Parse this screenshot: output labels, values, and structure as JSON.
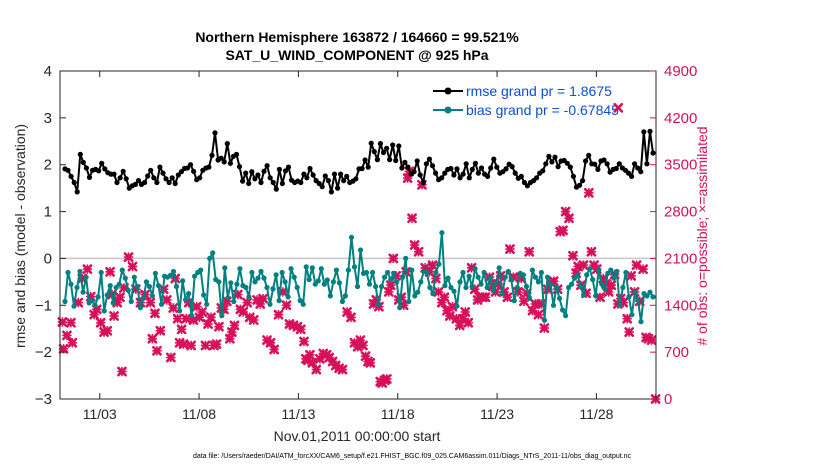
{
  "chart_data": {
    "type": "line",
    "title": "Northern Hemisphere 163872 / 164660 = 99.521%",
    "subtitle": "SAT_U_WIND_COMPONENT @ 925 hPa",
    "xlabel": "Nov.01,2011 00:00:00 start",
    "ylabel": "rmse and bias (model - observation)",
    "ylabel_right": "# of obs: o=possible; ×=assimilated",
    "footnote": "data file: /Users/raeder/DAI/ATM_forcXX/CAM6_setup/f.e21.FHIST_BGC.f09_025.CAM6assim.011/Diags_NTrS_2011-11/obs_diag_output.nc",
    "xlim": [
      0.5,
      30.5
    ],
    "ylim": [
      -3,
      4
    ],
    "ylim_right": [
      0,
      4900
    ],
    "x_ticks": [
      2.5,
      7.5,
      12.5,
      17.5,
      22.5,
      27.5
    ],
    "x_tick_labels": [
      "11/03",
      "11/08",
      "11/13",
      "11/18",
      "11/23",
      "11/28"
    ],
    "y_ticks": [
      -3,
      -2,
      -1,
      0,
      1,
      2,
      3,
      4
    ],
    "y_tick_labels": [
      "−3",
      "−2",
      "−1",
      "0",
      "1",
      "2",
      "3",
      "4"
    ],
    "y_ticks_right": [
      0,
      700,
      1400,
      2100,
      2800,
      3500,
      4200,
      4900
    ],
    "y_tick_labels_right": [
      "0",
      "700",
      "1400",
      "2100",
      "2800",
      "3500",
      "4200",
      "4900"
    ],
    "zero_line": 0,
    "legend_position": "top-right",
    "series": [
      {
        "name": "rmse grand pr = 1.8675",
        "color": "#000000",
        "marker": "circle",
        "values": [
          1.91,
          1.88,
          1.75,
          1.62,
          1.42,
          2.22,
          2.05,
          1.93,
          1.73,
          1.88,
          1.9,
          1.87,
          2.03,
          1.91,
          1.83,
          1.8,
          1.8,
          1.62,
          1.72,
          1.86,
          1.7,
          1.5,
          1.55,
          1.58,
          1.66,
          1.58,
          1.62,
          1.76,
          1.88,
          1.72,
          1.62,
          1.95,
          1.82,
          1.7,
          1.62,
          1.72,
          1.6,
          1.78,
          1.85,
          1.92,
          1.93,
          2.0,
          1.86,
          1.68,
          1.72,
          1.88,
          1.93,
          1.95,
          2.2,
          2.68,
          2.1,
          2.14,
          2.06,
          2.45,
          2.03,
          2.18,
          2.22,
          1.96,
          1.65,
          1.82,
          1.6,
          1.85,
          1.7,
          1.78,
          1.62,
          1.86,
          1.98,
          1.72,
          1.62,
          1.48,
          1.9,
          1.6,
          1.87,
          1.95,
          1.67,
          1.62,
          1.65,
          1.62,
          1.8,
          1.72,
          1.92,
          1.78,
          1.66,
          1.6,
          1.53,
          1.76,
          1.66,
          1.42,
          1.8,
          1.5,
          1.8,
          1.66,
          1.75,
          1.62,
          1.65,
          1.7,
          1.91,
          1.92,
          2.1,
          1.95,
          2.46,
          2.28,
          2.11,
          2.45,
          2.26,
          2.35,
          2.11,
          2.42,
          2.09,
          2.4,
          1.93,
          2.05,
          1.95,
          1.8,
          1.85,
          2.08,
          1.78,
          1.62,
          2.02,
          2.12,
          1.98,
          1.82,
          1.68,
          1.72,
          1.82,
          1.9,
          1.92,
          1.78,
          1.91,
          1.72,
          1.8,
          2.02,
          1.72,
          1.9,
          2.03,
          1.82,
          1.93,
          1.8,
          1.75,
          1.93,
          2.12,
          1.95,
          1.82,
          1.85,
          1.91,
          2.01,
          1.96,
          1.82,
          1.71,
          1.75,
          1.62,
          1.55,
          1.62,
          1.66,
          1.72,
          1.82,
          1.87,
          2.02,
          2.18,
          2.06,
          2.16,
          1.96,
          2.08,
          2.09,
          2.03,
          1.95,
          1.75,
          1.52,
          1.56,
          1.66,
          2.08,
          2.2,
          2.02,
          2.01,
          1.9,
          2.08,
          2.1,
          2.02,
          1.84,
          1.9,
          1.92,
          2.02,
          1.93,
          1.88,
          1.82,
          1.75,
          2.02,
          1.93,
          1.85,
          2.7,
          2.02,
          2.71,
          2.25
        ]
      },
      {
        "name": "bias grand pr = -0.67845",
        "color": "#008080",
        "marker": "circle",
        "values": [
          -0.92,
          -0.3,
          -0.55,
          -1.02,
          -0.62,
          -0.28,
          -0.72,
          -0.4,
          -0.95,
          -0.9,
          -1.0,
          -0.82,
          -0.3,
          -1.12,
          -0.78,
          -0.58,
          -0.95,
          -0.62,
          -0.55,
          -0.25,
          -0.42,
          -0.68,
          -0.92,
          -0.4,
          -0.6,
          -1.05,
          -0.85,
          -0.5,
          -0.6,
          -0.8,
          -0.32,
          -0.58,
          -0.98,
          -0.38,
          -0.4,
          -0.36,
          -0.28,
          -0.6,
          -1.12,
          -0.48,
          -0.88,
          -0.75,
          -1.22,
          -0.38,
          -0.3,
          -0.25,
          -0.78,
          -0.98,
          0.0,
          0.12,
          -0.45,
          -0.5,
          -1.22,
          -0.2,
          -0.84,
          -0.52,
          -0.92,
          -0.55,
          -0.22,
          -0.58,
          -0.62,
          -0.82,
          -0.3,
          -0.5,
          -0.42,
          -0.28,
          -0.42,
          -0.62,
          -0.98,
          -0.65,
          -0.35,
          -0.9,
          -0.3,
          -0.5,
          -0.82,
          -0.22,
          -0.4,
          -0.62,
          -0.9,
          -0.98,
          -0.18,
          -0.45,
          -0.2,
          -0.55,
          -0.48,
          -0.22,
          -0.55,
          -0.46,
          -0.8,
          -0.5,
          -0.25,
          -0.52,
          -0.92,
          -0.8,
          -0.25,
          0.45,
          -0.18,
          -0.6,
          0.18,
          -0.32,
          -0.3,
          -0.55,
          -0.3,
          -0.6,
          -0.98,
          -0.6,
          -0.4,
          -0.3,
          -0.45,
          -0.32,
          -0.5,
          -1.05,
          -0.4,
          0.0,
          -0.92,
          -0.25,
          -0.8,
          -0.72,
          -0.5,
          -0.28,
          -0.3,
          -0.62,
          -0.75,
          -0.3,
          -0.12,
          0.55,
          -0.58,
          -0.42,
          -0.62,
          -0.7,
          -1.02,
          -0.5,
          -0.3,
          -0.62,
          -0.38,
          -0.6,
          -0.22,
          -0.4,
          -0.55,
          -0.3,
          -0.62,
          -0.42,
          -0.68,
          -0.52,
          -0.2,
          -0.75,
          -0.4,
          -0.28,
          -0.45,
          -0.9,
          -0.62,
          -0.32,
          -0.35,
          -0.6,
          -0.85,
          -0.25,
          -0.4,
          -0.5,
          -0.3,
          -1.32,
          -0.4,
          -0.55,
          -1.0,
          -0.62,
          -0.85,
          -1.1,
          -1.22,
          -0.62,
          -0.55,
          -0.42,
          -0.35,
          -0.6,
          -0.78,
          -0.35,
          -0.22,
          -0.45,
          -0.8,
          -0.25,
          -0.55,
          -0.65,
          -0.32,
          -0.25,
          -0.42,
          -0.28,
          -1.0,
          -0.62,
          -0.3,
          -0.82,
          -1.2,
          -0.72,
          -0.88,
          -1.35,
          -0.75,
          -0.8,
          -0.72,
          -0.82
        ]
      }
    ],
    "assimilated_obs": {
      "name": "assimilated",
      "color": "#d6105a",
      "marker": "x",
      "points": [
        [
          0.62,
          1150
        ],
        [
          0.68,
          750
        ],
        [
          0.85,
          950
        ],
        [
          1.05,
          1140
        ],
        [
          1.12,
          840
        ],
        [
          1.42,
          1440
        ],
        [
          1.62,
          1800
        ],
        [
          1.88,
          1940
        ],
        [
          2.05,
          1530
        ],
        [
          2.22,
          1260
        ],
        [
          2.35,
          1340
        ],
        [
          2.55,
          1140
        ],
        [
          2.72,
          1000
        ],
        [
          2.88,
          1020
        ],
        [
          3.02,
          1900
        ],
        [
          3.12,
          1560
        ],
        [
          3.22,
          1240
        ],
        [
          3.38,
          1440
        ],
        [
          3.52,
          1520
        ],
        [
          3.62,
          410
        ],
        [
          3.72,
          1660
        ],
        [
          3.95,
          2120
        ],
        [
          4.15,
          1980
        ],
        [
          4.32,
          1640
        ],
        [
          4.55,
          1440
        ],
        [
          4.78,
          1560
        ],
        [
          5.05,
          1440
        ],
        [
          5.15,
          900
        ],
        [
          5.28,
          1280
        ],
        [
          5.38,
          720
        ],
        [
          5.55,
          1020
        ],
        [
          5.72,
          1640
        ],
        [
          5.88,
          1480
        ],
        [
          6.08,
          620
        ],
        [
          6.2,
          1360
        ],
        [
          6.3,
          1800
        ],
        [
          6.42,
          1200
        ],
        [
          6.52,
          840
        ],
        [
          6.62,
          1040
        ],
        [
          6.72,
          820
        ],
        [
          6.85,
          1200
        ],
        [
          6.98,
          1440
        ],
        [
          7.1,
          800
        ],
        [
          7.22,
          1180
        ],
        [
          7.38,
          1380
        ],
        [
          7.52,
          1220
        ],
        [
          7.65,
          1300
        ],
        [
          7.82,
          800
        ],
        [
          7.95,
          1120
        ],
        [
          8.1,
          1220
        ],
        [
          8.25,
          800
        ],
        [
          8.38,
          820
        ],
        [
          8.5,
          1080
        ],
        [
          8.62,
          1360
        ],
        [
          8.75,
          1340
        ],
        [
          8.9,
          1460
        ],
        [
          9.05,
          900
        ],
        [
          9.15,
          1000
        ],
        [
          9.28,
          1100
        ],
        [
          9.45,
          1560
        ],
        [
          9.58,
          1340
        ],
        [
          9.72,
          1300
        ],
        [
          9.92,
          1440
        ],
        [
          10.05,
          1220
        ],
        [
          10.25,
          1180
        ],
        [
          10.42,
          1480
        ],
        [
          10.58,
          1420
        ],
        [
          10.72,
          1500
        ],
        [
          10.92,
          880
        ],
        [
          11.1,
          840
        ],
        [
          11.28,
          740
        ],
        [
          11.5,
          1260
        ],
        [
          11.72,
          1600
        ],
        [
          11.9,
          1400
        ],
        [
          12.05,
          1120
        ],
        [
          12.25,
          1100
        ],
        [
          12.45,
          1080
        ],
        [
          12.62,
          1040
        ],
        [
          12.78,
          860
        ],
        [
          12.88,
          600
        ],
        [
          12.98,
          580
        ],
        [
          13.08,
          660
        ],
        [
          13.2,
          540
        ],
        [
          13.4,
          440
        ],
        [
          13.58,
          600
        ],
        [
          13.75,
          680
        ],
        [
          13.92,
          660
        ],
        [
          14.05,
          620
        ],
        [
          14.22,
          560
        ],
        [
          14.38,
          500
        ],
        [
          14.55,
          460
        ],
        [
          14.72,
          440
        ],
        [
          14.95,
          1300
        ],
        [
          15.15,
          1220
        ],
        [
          15.32,
          840
        ],
        [
          15.48,
          780
        ],
        [
          15.62,
          880
        ],
        [
          15.75,
          800
        ],
        [
          15.88,
          640
        ],
        [
          16.0,
          560
        ],
        [
          16.12,
          540
        ],
        [
          16.28,
          1420
        ],
        [
          16.42,
          1480
        ],
        [
          16.55,
          1380
        ],
        [
          16.62,
          260
        ],
        [
          16.72,
          240
        ],
        [
          16.85,
          280
        ],
        [
          16.95,
          300
        ],
        [
          17.05,
          1600
        ],
        [
          17.15,
          1700
        ],
        [
          17.28,
          2100
        ],
        [
          17.42,
          1840
        ],
        [
          17.55,
          1480
        ],
        [
          17.68,
          1520
        ],
        [
          17.8,
          1400
        ],
        [
          17.92,
          1900
        ],
        [
          18.0,
          3300
        ],
        [
          18.08,
          3400
        ],
        [
          18.22,
          2700
        ],
        [
          18.35,
          2300
        ],
        [
          18.55,
          2200
        ],
        [
          18.72,
          3200
        ],
        [
          18.88,
          1960
        ],
        [
          19.1,
          1900
        ],
        [
          19.25,
          2000
        ],
        [
          19.42,
          1800
        ],
        [
          19.55,
          1600
        ],
        [
          19.72,
          1440
        ],
        [
          19.85,
          1520
        ],
        [
          19.98,
          1320
        ],
        [
          20.12,
          1240
        ],
        [
          20.25,
          1380
        ],
        [
          20.45,
          1200
        ],
        [
          20.62,
          1100
        ],
        [
          20.78,
          1200
        ],
        [
          20.9,
          1300
        ],
        [
          21.05,
          1140
        ],
        [
          21.22,
          1960
        ],
        [
          21.38,
          1640
        ],
        [
          21.52,
          1480
        ],
        [
          21.62,
          1520
        ],
        [
          21.78,
          1520
        ],
        [
          21.92,
          1520
        ],
        [
          22.12,
          1820
        ],
        [
          22.28,
          1680
        ],
        [
          22.42,
          1600
        ],
        [
          22.55,
          1720
        ],
        [
          22.68,
          1840
        ],
        [
          22.85,
          1600
        ],
        [
          23.02,
          1520
        ],
        [
          23.15,
          2240
        ],
        [
          23.32,
          1820
        ],
        [
          23.55,
          1600
        ],
        [
          23.72,
          1800
        ],
        [
          23.85,
          1460
        ],
        [
          24.0,
          1580
        ],
        [
          24.12,
          2200
        ],
        [
          24.28,
          1320
        ],
        [
          24.42,
          1420
        ],
        [
          24.58,
          1260
        ],
        [
          24.72,
          1420
        ],
        [
          24.88,
          1060
        ],
        [
          25.05,
          1640
        ],
        [
          25.22,
          1740
        ],
        [
          25.35,
          1760
        ],
        [
          25.55,
          1640
        ],
        [
          25.68,
          2500
        ],
        [
          25.82,
          2520
        ],
        [
          25.95,
          2800
        ],
        [
          26.12,
          2700
        ],
        [
          26.32,
          2140
        ],
        [
          26.48,
          1880
        ],
        [
          26.58,
          1980
        ],
        [
          26.72,
          1700
        ],
        [
          26.85,
          2000
        ],
        [
          26.98,
          1580
        ],
        [
          27.12,
          3080
        ],
        [
          27.25,
          2200
        ],
        [
          27.38,
          2000
        ],
        [
          27.52,
          1940
        ],
        [
          27.68,
          1520
        ],
        [
          27.85,
          1800
        ],
        [
          27.98,
          1720
        ],
        [
          28.12,
          1600
        ],
        [
          28.25,
          1700
        ],
        [
          28.42,
          1860
        ],
        [
          28.58,
          1420
        ],
        [
          28.72,
          1500
        ],
        [
          28.85,
          1440
        ],
        [
          29.05,
          1200
        ],
        [
          29.15,
          1000
        ],
        [
          29.25,
          1840
        ],
        [
          29.42,
          1600
        ],
        [
          29.52,
          2000
        ],
        [
          29.68,
          1460
        ],
        [
          29.85,
          1940
        ],
        [
          30.0,
          920
        ],
        [
          30.12,
          900
        ],
        [
          30.28,
          880
        ],
        [
          30.48,
          0
        ]
      ]
    },
    "legend_outlier_marker": [
      28.6,
      4350
    ]
  }
}
